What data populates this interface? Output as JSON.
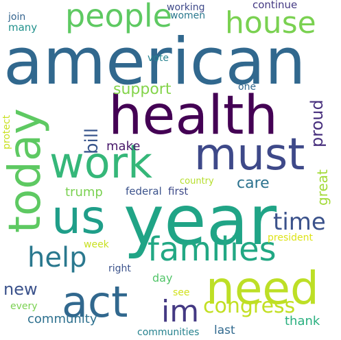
{
  "words": [
    {
      "text": "american",
      "color": "#31688e"
    },
    {
      "text": "year",
      "color": "#20a486"
    },
    {
      "text": "health",
      "color": "#440154"
    },
    {
      "text": "must",
      "color": "#3e4989"
    },
    {
      "text": "work",
      "color": "#35b779"
    },
    {
      "text": "today",
      "color": "#5ec962"
    },
    {
      "text": "us",
      "color": "#1f9e89"
    },
    {
      "text": "need",
      "color": "#bddf26"
    },
    {
      "text": "act",
      "color": "#31688e"
    },
    {
      "text": "families",
      "color": "#22a884"
    },
    {
      "text": "people",
      "color": "#5ec962"
    },
    {
      "text": "house",
      "color": "#7ad151"
    },
    {
      "text": "help",
      "color": "#2a788e"
    },
    {
      "text": "im",
      "color": "#443983"
    },
    {
      "text": "congress",
      "color": "#c2df23"
    },
    {
      "text": "time",
      "color": "#3b528b"
    },
    {
      "text": "bill",
      "color": "#39568c"
    },
    {
      "text": "proud",
      "color": "#472f7d"
    },
    {
      "text": "great",
      "color": "#a2da37"
    },
    {
      "text": "support",
      "color": "#84d44b"
    },
    {
      "text": "care",
      "color": "#2c728e"
    },
    {
      "text": "new",
      "color": "#3b528b"
    },
    {
      "text": "trump",
      "color": "#7ad151"
    },
    {
      "text": "make",
      "color": "#48186a"
    },
    {
      "text": "protect",
      "color": "#c8e020"
    },
    {
      "text": "continue",
      "color": "#443983"
    },
    {
      "text": "working",
      "color": "#3e4989"
    },
    {
      "text": "women",
      "color": "#2a788e"
    },
    {
      "text": "join",
      "color": "#33638d"
    },
    {
      "text": "many",
      "color": "#21918c"
    },
    {
      "text": "vote",
      "color": "#26828e"
    },
    {
      "text": "one",
      "color": "#31688e"
    },
    {
      "text": "federal",
      "color": "#3b528b"
    },
    {
      "text": "first",
      "color": "#3e4a89"
    },
    {
      "text": "country",
      "color": "#b5de2b"
    },
    {
      "text": "president",
      "color": "#dde318"
    },
    {
      "text": "week",
      "color": "#c8e020"
    },
    {
      "text": "right",
      "color": "#3b528b"
    },
    {
      "text": "day",
      "color": "#52c569"
    },
    {
      "text": "thank",
      "color": "#29af7f"
    },
    {
      "text": "see",
      "color": "#d0e11c"
    },
    {
      "text": "every",
      "color": "#7ad151"
    },
    {
      "text": "community",
      "color": "#2d708e"
    },
    {
      "text": "communities",
      "color": "#26828e"
    },
    {
      "text": "last",
      "color": "#30698e"
    }
  ]
}
